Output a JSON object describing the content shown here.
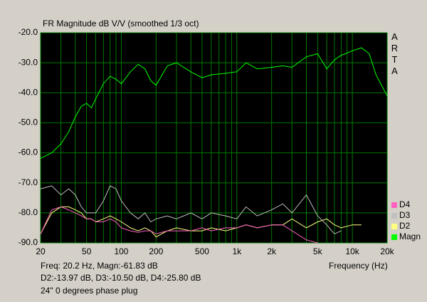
{
  "chart_data": {
    "type": "line",
    "title": "FR Magnitude dB V/V (smoothed 1/3 oct)",
    "watermark": "ARTA",
    "x_label": "Frequency (Hz)",
    "readout": [
      "Freq: 20.2 Hz, Magn:-61.83 dB",
      "D2:-13.97 dB, D3:-10.50 dB, D4:-25.80 dB",
      "24\" 0 degrees phase plug"
    ],
    "xscale": "log",
    "grid": true,
    "background": "#000000",
    "grid_color": "#007a00",
    "xlim": [
      20,
      20000
    ],
    "ylim": [
      -90,
      -20
    ],
    "xticks": [
      20,
      50,
      100,
      200,
      500,
      {
        "value": 1000,
        "label": "1k"
      },
      {
        "value": 2000,
        "label": "2k"
      },
      {
        "value": 5000,
        "label": "5k"
      },
      {
        "value": 10000,
        "label": "10k"
      },
      {
        "value": 20000,
        "label": "20k"
      }
    ],
    "xminorticks": [
      30,
      40,
      60,
      70,
      80,
      90,
      300,
      400,
      600,
      700,
      800,
      900,
      3000,
      4000,
      6000,
      7000,
      8000,
      9000
    ],
    "yticks": [
      {
        "value": -20,
        "label": "-20.0"
      },
      {
        "value": -30,
        "label": "-30.0"
      },
      {
        "value": -40,
        "label": "-40.0"
      },
      {
        "value": -50,
        "label": "-50.0"
      },
      {
        "value": -60,
        "label": "-60.0"
      },
      {
        "value": -70,
        "label": "-70.0"
      },
      {
        "value": -80,
        "label": "-80.0"
      },
      {
        "value": -90,
        "label": "-90.0"
      }
    ],
    "x": [
      20,
      25,
      30,
      35,
      40,
      45,
      50,
      55,
      60,
      70,
      80,
      90,
      100,
      120,
      140,
      160,
      180,
      200,
      250,
      300,
      400,
      500,
      600,
      800,
      1000,
      1200,
      1500,
      2000,
      2500,
      3000,
      4000,
      5000,
      6000,
      7000,
      8000,
      10000,
      12000,
      14000,
      16000,
      20000
    ],
    "series": [
      {
        "name": "Magn",
        "color": "#00ff00",
        "values": [
          -61.8,
          -60,
          -57,
          -53,
          -48,
          -44.5,
          -43.5,
          -45,
          -42,
          -37,
          -34.5,
          -35.5,
          -37,
          -33,
          -30.5,
          -32,
          -36,
          -37.5,
          -31,
          -30,
          -33,
          -35,
          -34,
          -33.5,
          -33,
          -30,
          -32,
          -31.5,
          -31,
          -31.5,
          -28,
          -27,
          -32,
          -29,
          -27.5,
          -26,
          -25,
          -27,
          -34,
          -41
        ]
      },
      {
        "name": "D2",
        "color": "#ffff80",
        "values": [
          -87,
          -80,
          -78,
          -78,
          -79,
          -80,
          -82,
          -82,
          -83,
          -82,
          -81,
          -82,
          -83,
          -85,
          -86,
          -85,
          -86,
          -88,
          -86,
          -85,
          -86,
          -86,
          -85,
          -86,
          -85,
          -84,
          -85,
          -84,
          -84,
          -82,
          -85,
          -83,
          -82,
          -84,
          -85,
          -84,
          -84,
          null,
          null,
          null
        ]
      },
      {
        "name": "D3",
        "color": "#c0c0c0",
        "values": [
          -72,
          -71,
          -74,
          -72,
          -74,
          -78,
          -80,
          -80,
          -80,
          -76,
          -71,
          -72,
          -76,
          -80,
          -82,
          -80,
          -83,
          -82,
          -81,
          -82,
          -80,
          -82,
          -80,
          -81,
          -82,
          -78,
          -81,
          -79,
          -77,
          -80,
          -74,
          -81,
          -84,
          -87,
          -86,
          null,
          null,
          null,
          null,
          null
        ]
      },
      {
        "name": "D4",
        "color": "#ff60c0",
        "values": [
          -87,
          -79,
          -78,
          -79,
          -80,
          -81,
          -82,
          -82,
          -83,
          -83,
          -82,
          -83,
          -85,
          -86,
          -86.5,
          -86,
          -86,
          -87,
          -86,
          -86,
          -86,
          -85,
          -86,
          -85,
          -85,
          -84,
          -85,
          -84,
          -84,
          -86,
          -89,
          -90,
          null,
          null,
          null,
          null,
          null,
          null,
          null,
          null
        ]
      }
    ]
  }
}
